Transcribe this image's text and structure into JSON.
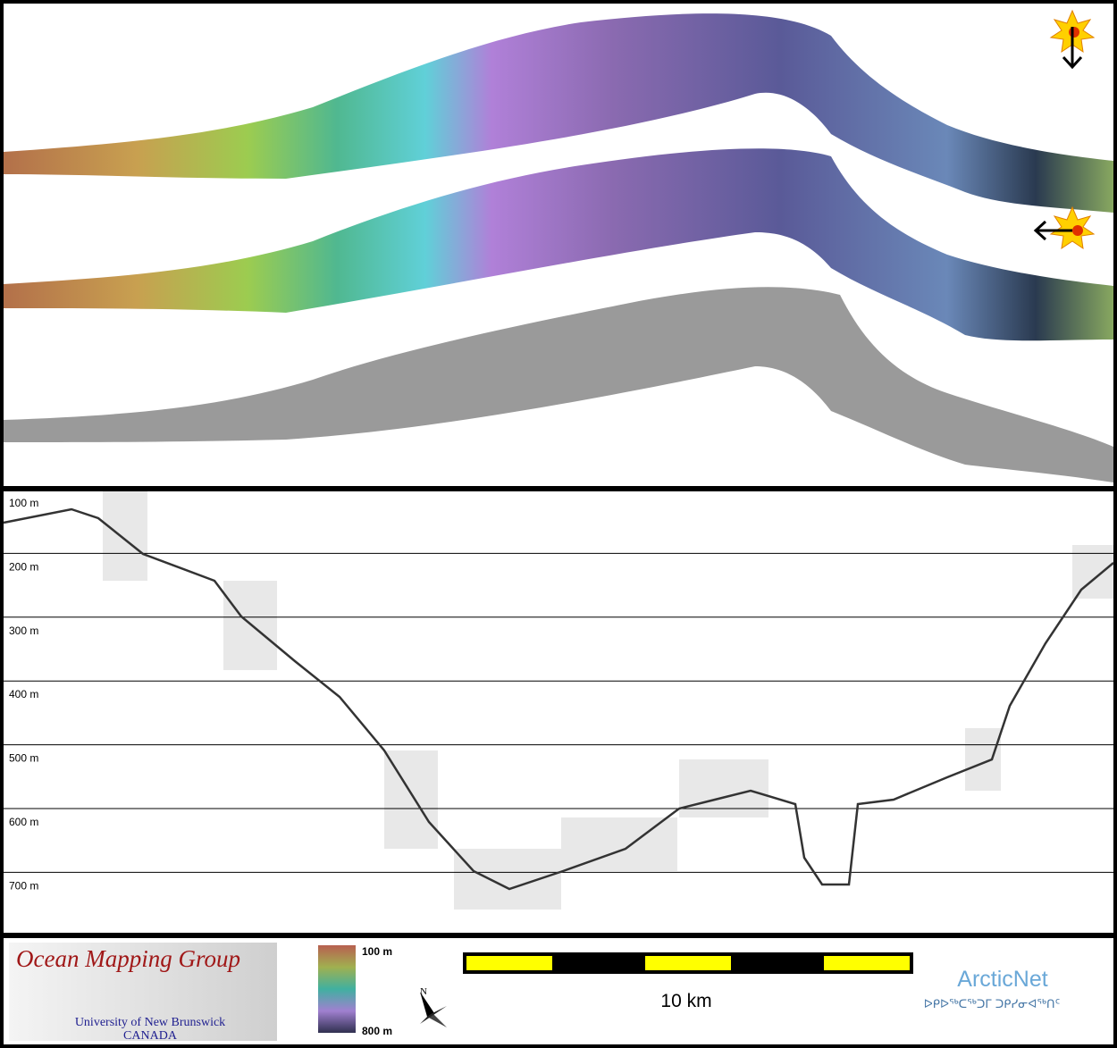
{
  "profile": {
    "depth_labels": [
      "100 m",
      "200 m",
      "300 m",
      "400 m",
      "500 m",
      "600 m",
      "700 m"
    ]
  },
  "logo": {
    "title": "Ocean Mapping Group",
    "university": "University of New Brunswick",
    "country": "CANADA"
  },
  "colorbar": {
    "top_label": "100 m",
    "bottom_label": "800 m"
  },
  "north_arrow": {
    "label": "N"
  },
  "scale_bar": {
    "label": "10 km"
  },
  "partner": {
    "name": "ArcticNet",
    "name_syllabics": "ᐅᑭᐅᖅᑕᖅᑐᒥ ᑐᑭᓯᓂᐊᖅᑎᑦ"
  }
}
